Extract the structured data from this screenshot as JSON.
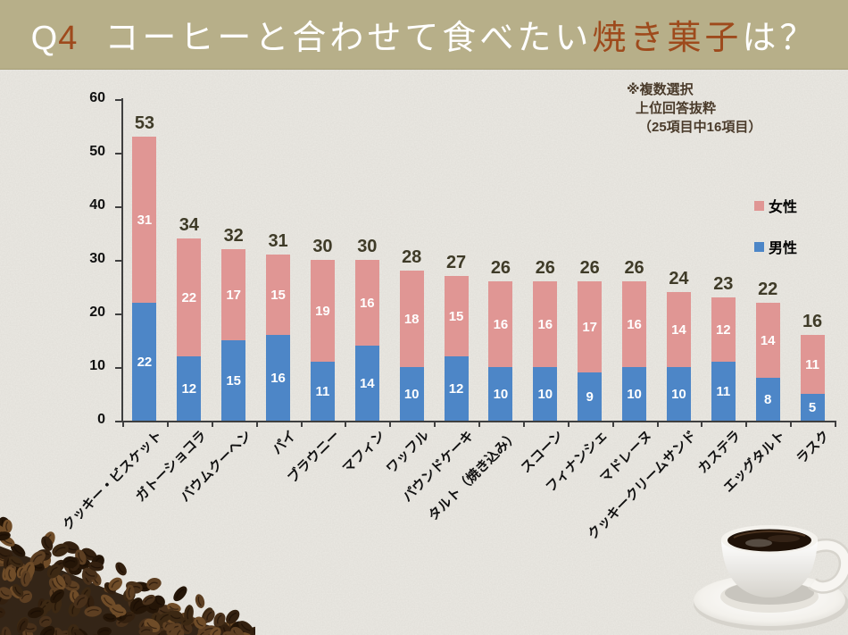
{
  "header": {
    "q_white": "Q",
    "q_accent": "4",
    "title_part1": "コーヒーと合わせて食べたい",
    "title_accent": "焼き菓子",
    "title_part2": "は？"
  },
  "annotation": {
    "lines": [
      "※複数選択",
      "上位回答抜粋",
      "（25項目中16項目）"
    ]
  },
  "legend": {
    "female": "女性",
    "male": "男性"
  },
  "colors": {
    "header_bg": "#b7af89",
    "title_accent": "#9e4a1c",
    "female": "#e09694",
    "male": "#4d86c7",
    "total_label": "#3f3b28",
    "note_text": "#4a3b2b"
  },
  "chart_data": {
    "type": "bar",
    "stacked": true,
    "title": "Q4 コーヒーと合わせて食べたい焼き菓子は？",
    "categories": [
      "クッキー・ビスケット",
      "ガトーショコラ",
      "バウムクーヘン",
      "パイ",
      "ブラウニー",
      "マフィン",
      "ワッフル",
      "パウンドケーキ",
      "タルト（焼き込み）",
      "スコーン",
      "フィナンシェ",
      "マドレーヌ",
      "クッキークリームサンド",
      "カステラ",
      "エッグタルト",
      "ラスク"
    ],
    "series": [
      {
        "name": "男性",
        "color": "#4d86c7",
        "values": [
          22,
          12,
          15,
          16,
          11,
          14,
          10,
          12,
          10,
          10,
          9,
          10,
          10,
          11,
          8,
          5
        ]
      },
      {
        "name": "女性",
        "color": "#e09694",
        "values": [
          31,
          22,
          17,
          15,
          19,
          16,
          18,
          15,
          16,
          16,
          17,
          16,
          14,
          12,
          14,
          11
        ]
      }
    ],
    "totals": [
      53,
      34,
      32,
      31,
      30,
      30,
      28,
      27,
      26,
      26,
      26,
      26,
      24,
      23,
      22,
      16
    ],
    "xlabel": "",
    "ylabel": "",
    "ylim": [
      0,
      60
    ],
    "yticks": [
      0,
      10,
      20,
      30,
      40,
      50,
      60
    ],
    "grid": false,
    "legend_position": "right"
  }
}
